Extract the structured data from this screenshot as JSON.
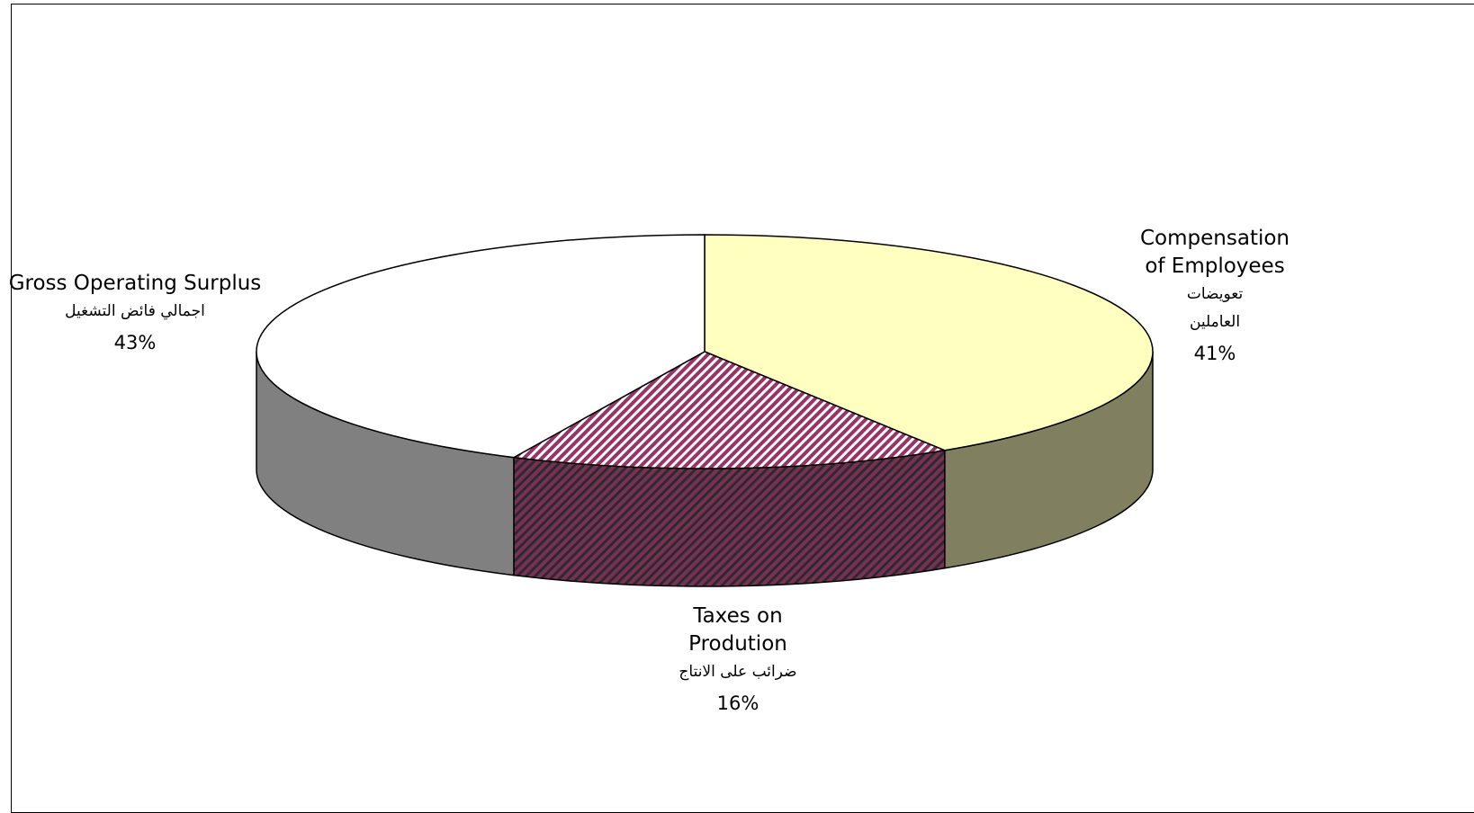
{
  "chart_data": {
    "type": "pie",
    "style": "3d",
    "slices": [
      {
        "key": "compensation",
        "label_en": "Compensation of Employees",
        "label_en_lines": [
          "Compensation",
          "of Employees"
        ],
        "label_ar_lines": [
          "تعويضات",
          "العاملين"
        ],
        "value": 41,
        "value_label": "41%",
        "top_color": "#ffffc0",
        "side_color": "#808060",
        "pattern": "none"
      },
      {
        "key": "taxes",
        "label_en": "Taxes on Prodution",
        "label_en_lines": [
          "Taxes on",
          "Prodution"
        ],
        "label_ar_lines": [
          "ضرائب على الانتاج"
        ],
        "value": 16,
        "value_label": "16%",
        "top_color": "#993366",
        "side_color": "#4d1a33",
        "pattern": "diagonal-stripes"
      },
      {
        "key": "gross",
        "label_en": "Gross Operating Surplus",
        "label_en_lines": [
          "Gross Operating Surplus"
        ],
        "label_ar_lines": [
          "اجمالي فائض التشغيل"
        ],
        "value": 43,
        "value_label": "43%",
        "top_color": "#ffffff",
        "side_color": "#808080",
        "pattern": "none"
      }
    ],
    "legend": "none"
  }
}
